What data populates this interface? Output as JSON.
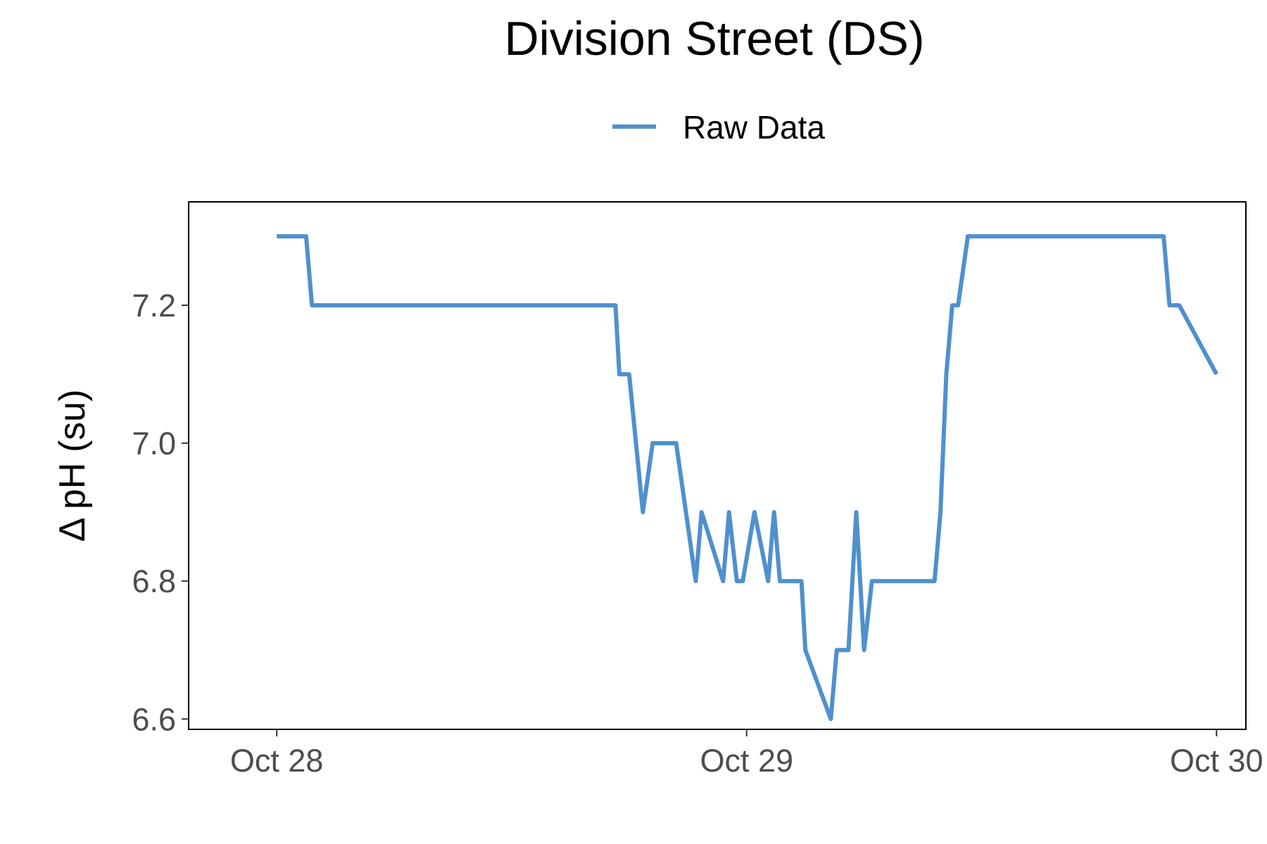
{
  "chart_data": {
    "type": "line",
    "title": "Division Street (DS)",
    "xlabel": "",
    "ylabel": "Δ pH (su)",
    "x_unit": "hours since Oct 28 00:00",
    "xlim": [
      -4.5,
      49.5
    ],
    "ylim": [
      6.585,
      7.35
    ],
    "x_ticks": [
      {
        "value": 0,
        "label": "Oct 28"
      },
      {
        "value": 24,
        "label": "Oct 29"
      },
      {
        "value": 48,
        "label": "Oct 30"
      }
    ],
    "y_ticks": [
      {
        "value": 6.6,
        "label": "6.6"
      },
      {
        "value": 6.8,
        "label": "6.8"
      },
      {
        "value": 7.0,
        "label": "7.0"
      },
      {
        "value": 7.2,
        "label": "7.2"
      }
    ],
    "grid": false,
    "legend_position": "top",
    "colors": {
      "series": "#4f90cd",
      "axis": "#000000",
      "tick": "#333333"
    },
    "series": [
      {
        "name": "Raw Data",
        "x": [
          0,
          1.5,
          1.8,
          17.3,
          17.5,
          18.0,
          18.7,
          19.2,
          19.7,
          20.4,
          21.4,
          21.7,
          22.8,
          23.1,
          23.5,
          23.8,
          24.4,
          25.1,
          25.4,
          25.7,
          26.1,
          26.4,
          26.8,
          27.0,
          28.3,
          28.6,
          29.2,
          29.6,
          30.0,
          30.4,
          30.9,
          31.2,
          31.4,
          32.0,
          33.6,
          33.9,
          34.2,
          34.5,
          34.8,
          35.3,
          36.1,
          36.5,
          45.3,
          45.6,
          46.1,
          48.0
        ],
        "values": [
          7.3,
          7.3,
          7.2,
          7.2,
          7.1,
          7.1,
          6.9,
          7.0,
          7.0,
          7.0,
          6.8,
          6.9,
          6.8,
          6.9,
          6.8,
          6.8,
          6.9,
          6.8,
          6.9,
          6.8,
          6.8,
          6.8,
          6.8,
          6.7,
          6.6,
          6.7,
          6.7,
          6.9,
          6.7,
          6.8,
          6.8,
          6.8,
          6.8,
          6.8,
          6.8,
          6.9,
          7.1,
          7.2,
          7.2,
          7.3,
          7.3,
          7.3,
          7.3,
          7.2,
          7.2,
          7.1
        ]
      }
    ]
  }
}
